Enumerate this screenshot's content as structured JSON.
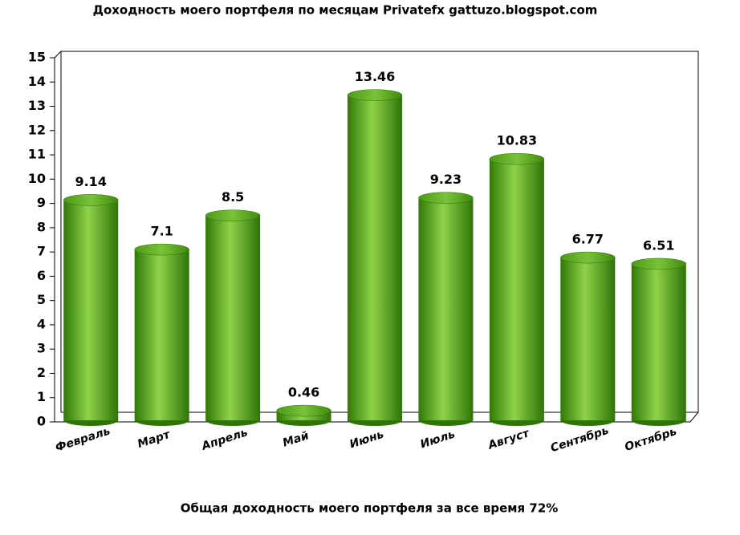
{
  "chart_data": {
    "type": "bar",
    "title": "Доходность моего портфеля по месяцам Privatefx gattuzo.blogspot.com",
    "footnote": "Общая доходность моего портфеля за все время 72%",
    "categories": [
      "Февраль",
      "Март",
      "Апрель",
      "Май",
      "Июнь",
      "Июль",
      "Август",
      "Сентябрь",
      "Октябрь"
    ],
    "values": [
      9.14,
      7.1,
      8.5,
      0.46,
      13.46,
      9.23,
      10.83,
      6.77,
      6.51
    ],
    "color": "#4a9a12",
    "ylim": [
      0,
      15
    ],
    "yticks": [
      0,
      1,
      2,
      3,
      4,
      5,
      6,
      7,
      8,
      9,
      10,
      11,
      12,
      13,
      14,
      15
    ]
  }
}
